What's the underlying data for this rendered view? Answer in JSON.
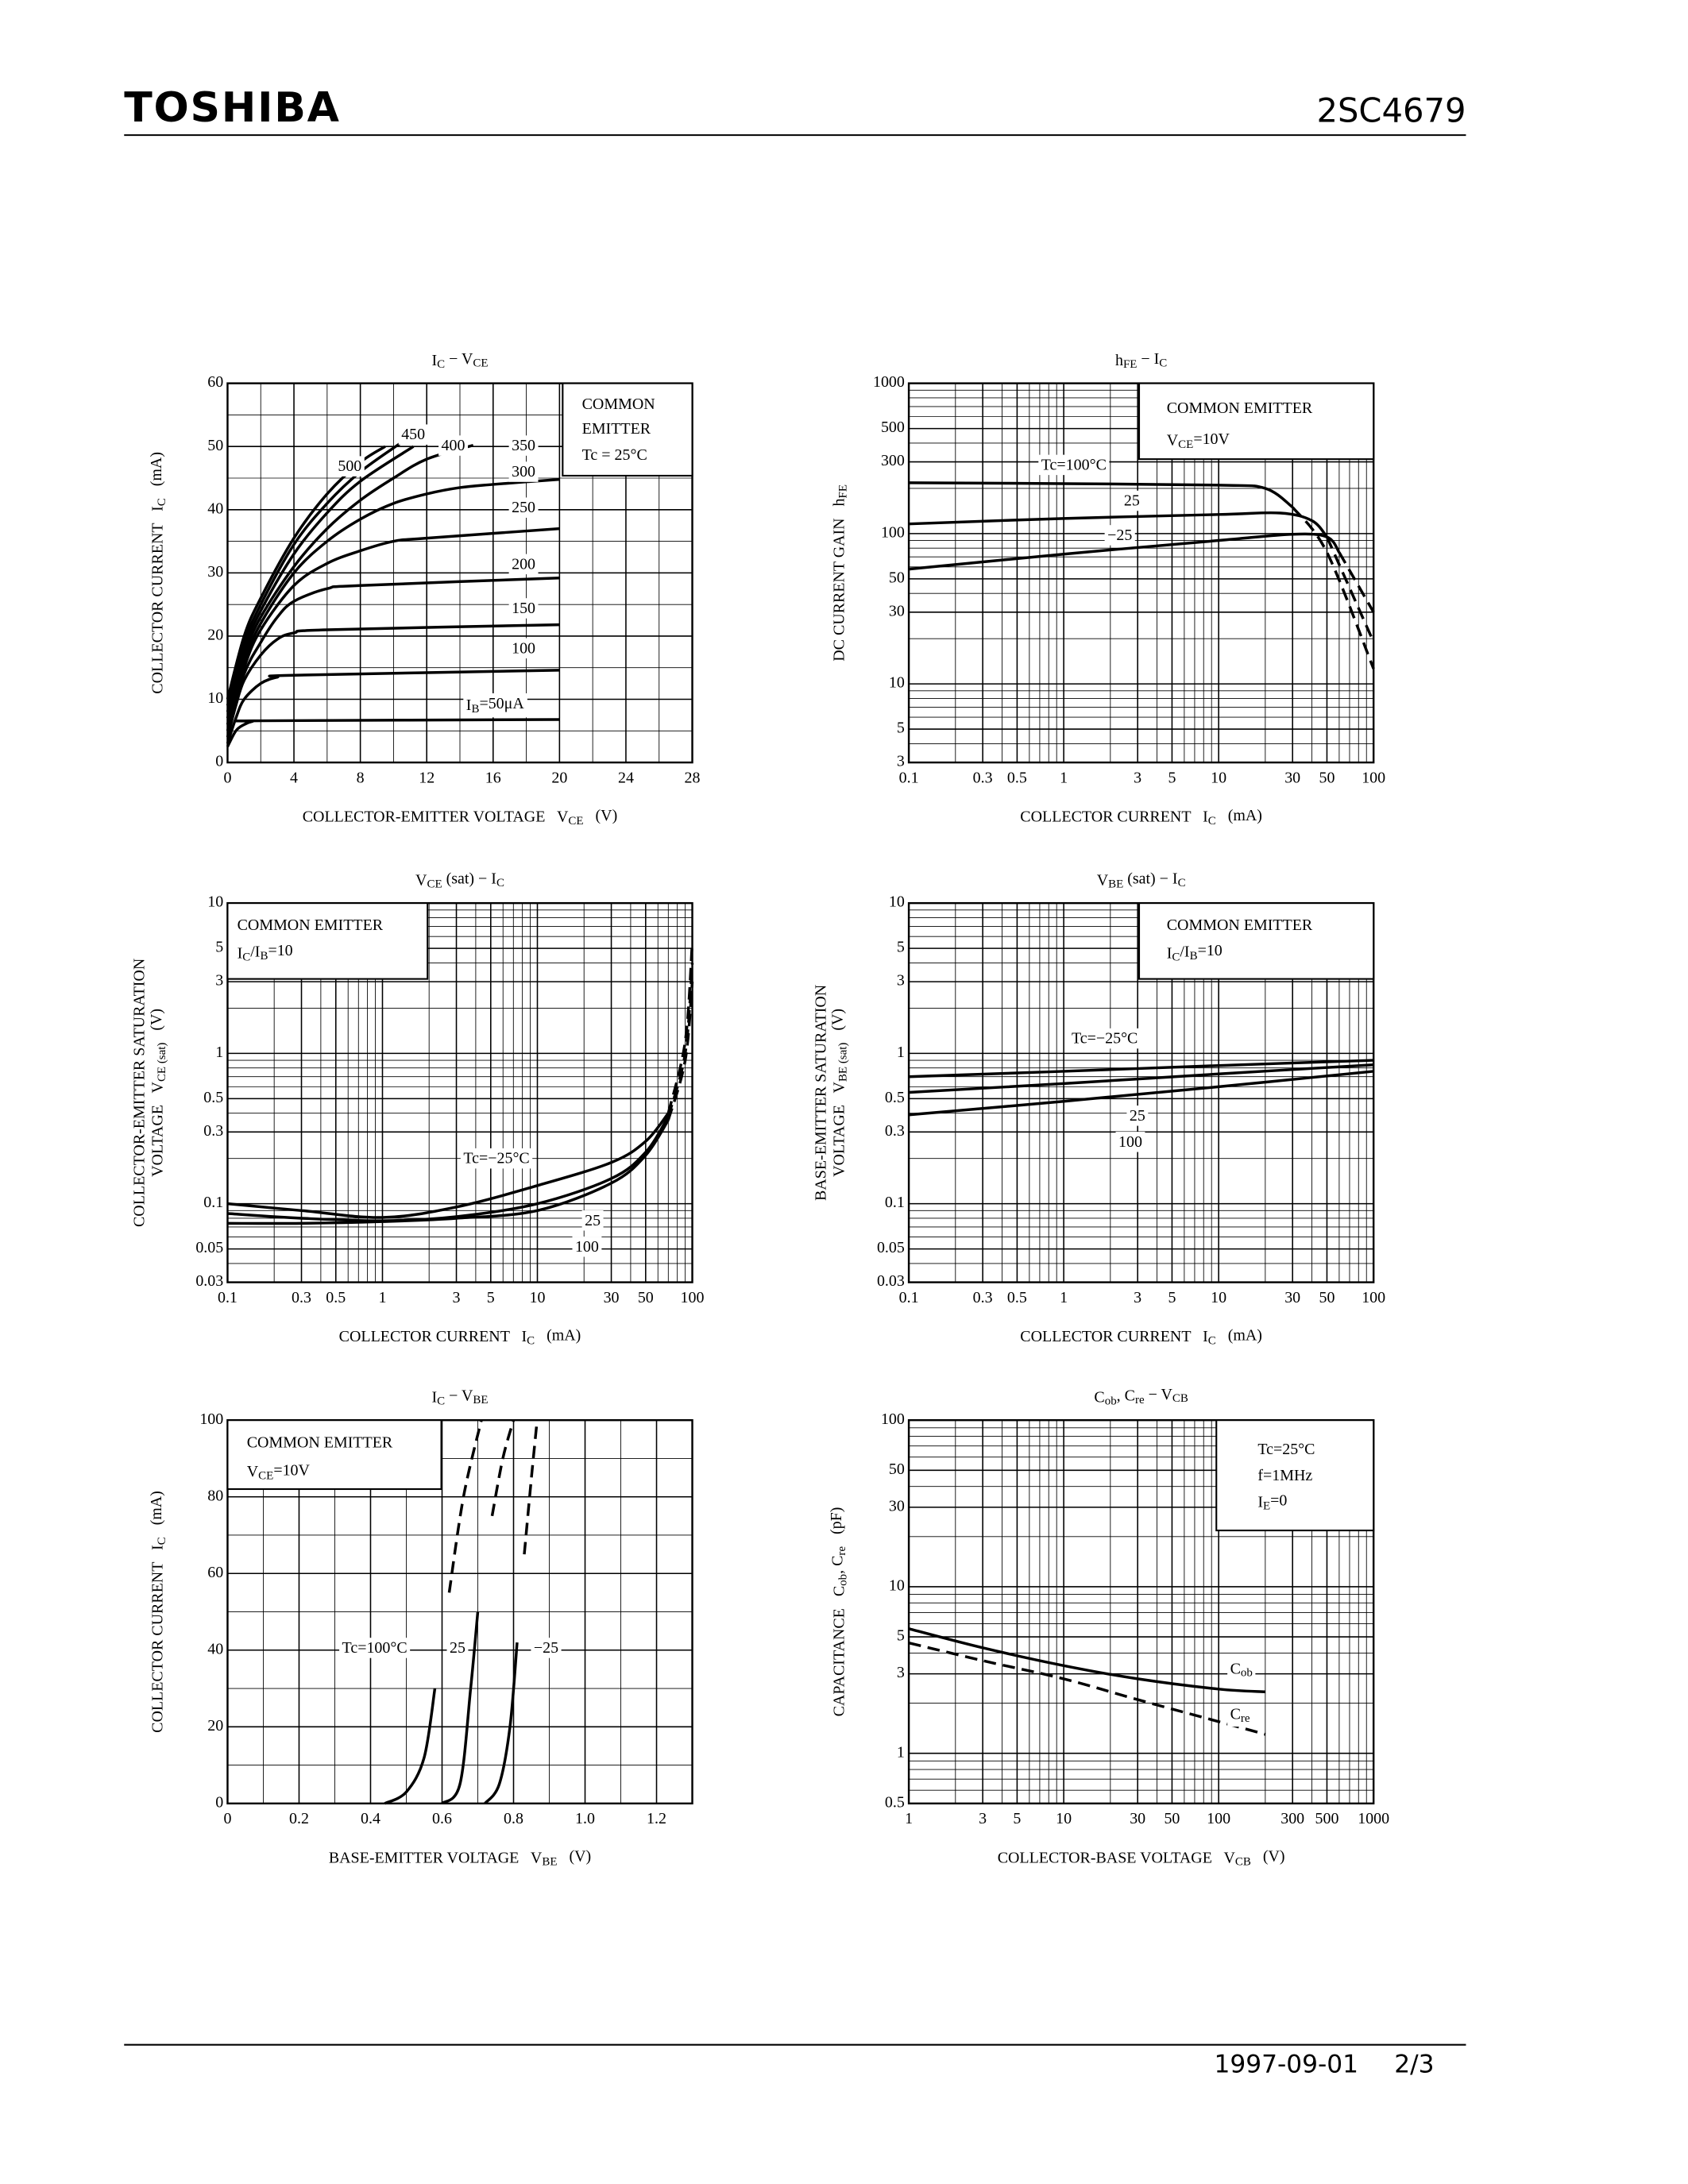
{
  "header": {
    "brand": "TOSHIBA",
    "part": "2SC4679"
  },
  "footer": {
    "date": "1997-09-01",
    "page": "2/3"
  },
  "chart_data": [
    {
      "type": "line",
      "title": [
        "I",
        {
          "sub": "C"
        },
        " − V",
        {
          "sub": "CE"
        }
      ],
      "xlabel": [
        "COLLECTOR-EMITTER VOLTAGE   V",
        {
          "sub": "CE"
        },
        "   (V)"
      ],
      "ylabel": [
        [
          "COLLECTOR CURRENT   I",
          {
            "sub": "C"
          },
          "   (mA)"
        ]
      ],
      "note": [
        "COMMON",
        "EMITTER",
        "Tc = 25°C"
      ],
      "xscale": "linear",
      "yscale": "linear",
      "xlim": [
        0,
        28
      ],
      "xticks": [
        0,
        4,
        8,
        12,
        16,
        20,
        24,
        28
      ],
      "ylim": [
        0,
        60
      ],
      "yticks": [
        0,
        10,
        20,
        30,
        40,
        50,
        60
      ],
      "grid": true,
      "minor_grid": {
        "x": 2,
        "y": 5
      },
      "series": [
        {
          "name": [
            "I",
            {
              "sub": "B"
            },
            "=50μA"
          ],
          "color": "#000",
          "x": [
            0,
            0.5,
            1,
            1.5,
            2,
            20
          ],
          "values": [
            2.5,
            5,
            6,
            6.5,
            6.6,
            6.8
          ]
        },
        {
          "name": "100",
          "color": "#000",
          "x": [
            0,
            0.5,
            1,
            2,
            3,
            4,
            20
          ],
          "values": [
            3,
            7,
            10,
            12.5,
            13.5,
            13.8,
            14.6
          ]
        },
        {
          "name": "150",
          "color": "#000",
          "x": [
            0,
            0.5,
            1,
            2,
            3,
            4,
            6,
            20
          ],
          "values": [
            4,
            9,
            13,
            17,
            19.5,
            20.5,
            21,
            21.8
          ]
        },
        {
          "name": "200",
          "color": "#000",
          "x": [
            0,
            1,
            2,
            3,
            4,
            6,
            8,
            20
          ],
          "values": [
            5,
            14,
            19,
            23,
            25.5,
            27.5,
            28,
            29.2
          ]
        },
        {
          "name": "250",
          "color": "#000",
          "x": [
            0,
            1,
            2,
            4,
            6,
            8,
            10,
            12,
            20
          ],
          "values": [
            6,
            15,
            21,
            28,
            31.5,
            33.5,
            35,
            35.5,
            37
          ]
        },
        {
          "name": "300",
          "color": "#000",
          "x": [
            0,
            1,
            2,
            4,
            6,
            8,
            10,
            12,
            14,
            16,
            20
          ],
          "values": [
            7,
            16,
            22,
            30,
            35,
            38.5,
            41,
            42.5,
            43.5,
            44,
            44.8
          ]
        },
        {
          "name": "350",
          "color": "#000",
          "x": [
            0,
            1,
            2,
            4,
            6,
            8,
            10,
            12,
            14.8
          ],
          "values": [
            8,
            17,
            23,
            31,
            37,
            41.5,
            45,
            48,
            50.2
          ]
        },
        {
          "name": "400",
          "color": "#000",
          "x": [
            0,
            1,
            2,
            4,
            6,
            8,
            11.2
          ],
          "values": [
            9,
            18,
            24,
            33,
            39.5,
            44.5,
            50
          ]
        },
        {
          "name": "450",
          "color": "#000",
          "x": [
            0,
            1,
            2,
            4,
            6,
            8,
            10.4
          ],
          "values": [
            10,
            19,
            25,
            34.5,
            41,
            46,
            50.5
          ]
        },
        {
          "name": "500",
          "color": "#000",
          "x": [
            0,
            1,
            2,
            4,
            6,
            8,
            9.5
          ],
          "values": [
            10,
            20,
            26,
            35.5,
            42.5,
            47.5,
            50
          ]
        }
      ]
    },
    {
      "type": "line",
      "title": [
        "h",
        {
          "sub": "FE"
        },
        " − I",
        {
          "sub": "C"
        }
      ],
      "xlabel": [
        "COLLECTOR CURRENT   I",
        {
          "sub": "C"
        },
        "   (mA)"
      ],
      "ylabel": [
        [
          "DC CURRENT GAIN   h",
          {
            "sub": "FE"
          }
        ]
      ],
      "note": [
        "COMMON EMITTER",
        [
          "V",
          {
            "sub": "CE"
          },
          "=10V"
        ]
      ],
      "xscale": "log",
      "yscale": "log",
      "xlim": [
        0.1,
        100
      ],
      "xticks": [
        0.1,
        0.3,
        0.5,
        1,
        3,
        5,
        10,
        30,
        50,
        100
      ],
      "ylim": [
        3,
        1000
      ],
      "yticks": [
        3,
        5,
        10,
        30,
        50,
        100,
        300,
        500,
        1000
      ],
      "grid": true,
      "minor_grid": {
        "x": "log",
        "y": "log"
      },
      "series": [
        {
          "name": "Tc=100°C",
          "color": "#000",
          "x": [
            0.1,
            1,
            10,
            20,
            30,
            50,
            100
          ],
          "values": [
            218,
            215,
            210,
            200,
            150,
            75,
            12.6
          ],
          "dash_from": 30
        },
        {
          "name": "25",
          "color": "#000",
          "x": [
            0.1,
            1,
            10,
            25,
            40,
            50,
            100
          ],
          "values": [
            116,
            126,
            134,
            137,
            122,
            95,
            19
          ],
          "dash_from": 50
        },
        {
          "name": "−25",
          "color": "#000",
          "x": [
            0.1,
            1,
            10,
            30,
            50,
            60,
            100
          ],
          "values": [
            58,
            73,
            90,
            99,
            95,
            75,
            30
          ],
          "dash_from": 60
        }
      ]
    },
    {
      "type": "line",
      "title": [
        "V",
        {
          "sub": "CE"
        },
        " (sat) − I",
        {
          "sub": "C"
        }
      ],
      "xlabel": [
        "COLLECTOR CURRENT   I",
        {
          "sub": "C"
        },
        "   (mA)"
      ],
      "ylabel": [
        "COLLECTOR-EMITTER SATURATION",
        [
          "VOLTAGE   V",
          {
            "sub": "CE (sat)"
          },
          "   (V)"
        ]
      ],
      "note": [
        "COMMON EMITTER",
        [
          "I",
          {
            "sub": "C"
          },
          "/I",
          {
            "sub": "B"
          },
          "=10"
        ]
      ],
      "xscale": "log",
      "yscale": "log",
      "xlim": [
        0.1,
        100
      ],
      "xticks": [
        0.1,
        0.3,
        0.5,
        1,
        3,
        5,
        10,
        30,
        50,
        100
      ],
      "ylim": [
        0.03,
        10
      ],
      "yticks": [
        0.03,
        0.05,
        0.1,
        0.3,
        0.5,
        1,
        3,
        5,
        10
      ],
      "grid": true,
      "minor_grid": {
        "x": "log",
        "y": "log"
      },
      "series": [
        {
          "name": "Tc=−25°C",
          "color": "#000",
          "x": [
            0.1,
            0.3,
            1,
            3,
            10,
            30,
            50,
            70,
            90,
            100
          ],
          "values": [
            0.1,
            0.09,
            0.081,
            0.095,
            0.132,
            0.188,
            0.26,
            0.4,
            1.2,
            5.5
          ],
          "dash_from": 70
        },
        {
          "name": "25",
          "color": "#000",
          "x": [
            0.1,
            0.3,
            1,
            3,
            10,
            30,
            50,
            70,
            90,
            100
          ],
          "values": [
            0.086,
            0.08,
            0.077,
            0.082,
            0.1,
            0.147,
            0.22,
            0.38,
            1,
            4
          ],
          "dash_from": 70
        },
        {
          "name": "100",
          "color": "#000",
          "x": [
            0.1,
            0.3,
            1,
            3,
            10,
            30,
            50,
            70,
            90,
            100
          ],
          "values": [
            0.074,
            0.074,
            0.076,
            0.08,
            0.09,
            0.137,
            0.21,
            0.36,
            0.9,
            3
          ],
          "dash_from": 70
        }
      ]
    },
    {
      "type": "line",
      "title": [
        "V",
        {
          "sub": "BE"
        },
        " (sat) − I",
        {
          "sub": "C"
        }
      ],
      "xlabel": [
        "COLLECTOR CURRENT   I",
        {
          "sub": "C"
        },
        "   (mA)"
      ],
      "ylabel": [
        "BASE-EMITTER SATURATION",
        [
          "VOLTAGE   V",
          {
            "sub": "BE (sat)"
          },
          "   (V)"
        ]
      ],
      "note": [
        "COMMON EMITTER",
        [
          "I",
          {
            "sub": "C"
          },
          "/I",
          {
            "sub": "B"
          },
          "=10"
        ]
      ],
      "xscale": "log",
      "yscale": "log",
      "xlim": [
        0.1,
        100
      ],
      "xticks": [
        0.1,
        0.3,
        0.5,
        1,
        3,
        5,
        10,
        30,
        50,
        100
      ],
      "ylim": [
        0.03,
        10
      ],
      "yticks": [
        0.03,
        0.05,
        0.1,
        0.3,
        0.5,
        1,
        3,
        5,
        10
      ],
      "grid": true,
      "minor_grid": {
        "x": "log",
        "y": "log"
      },
      "series": [
        {
          "name": "Tc=−25°C",
          "color": "#000",
          "x": [
            0.1,
            1,
            10,
            100
          ],
          "values": [
            0.7,
            0.76,
            0.83,
            0.9
          ]
        },
        {
          "name": "25",
          "color": "#000",
          "x": [
            0.1,
            1,
            10,
            100
          ],
          "values": [
            0.55,
            0.63,
            0.73,
            0.84
          ]
        },
        {
          "name": "100",
          "color": "#000",
          "x": [
            0.1,
            1,
            10,
            100
          ],
          "values": [
            0.39,
            0.48,
            0.6,
            0.76
          ]
        }
      ]
    },
    {
      "type": "line",
      "title": [
        "I",
        {
          "sub": "C"
        },
        " − V",
        {
          "sub": "BE"
        }
      ],
      "xlabel": [
        "BASE-EMITTER VOLTAGE   V",
        {
          "sub": "BE"
        },
        "   (V)"
      ],
      "ylabel": [
        [
          "COLLECTOR CURRENT   I",
          {
            "sub": "C"
          },
          "   (mA)"
        ]
      ],
      "note": [
        "COMMON EMITTER",
        [
          "V",
          {
            "sub": "CE"
          },
          "=10V"
        ]
      ],
      "xscale": "linear",
      "yscale": "linear",
      "xlim": [
        0,
        1.3
      ],
      "xticks": [
        0,
        0.2,
        0.4,
        0.6,
        0.8,
        {
          "value": 1,
          "label": "1.0"
        },
        1.2
      ],
      "ylim": [
        0,
        100
      ],
      "yticks": [
        0,
        20,
        40,
        60,
        80,
        100
      ],
      "grid": true,
      "minor_grid": {
        "x": 0.1,
        "y": 10
      },
      "series": [
        {
          "name": "Tc=100°C",
          "color": "#000",
          "x": [
            0.44,
            0.5,
            0.55,
            0.58,
            0.62,
            0.66,
            0.71
          ],
          "values": [
            0,
            3,
            12,
            30,
            55,
            80,
            100
          ],
          "dash_from": 0.6
        },
        {
          "name": "25",
          "color": "#000",
          "x": [
            0.6,
            0.65,
            0.68,
            0.7,
            0.74,
            0.77,
            0.8
          ],
          "values": [
            0,
            5,
            30,
            50,
            75,
            90,
            100
          ],
          "dash_from": 0.73
        },
        {
          "name": "−25",
          "color": "#000",
          "x": [
            0.72,
            0.76,
            0.79,
            0.81,
            0.83,
            0.85,
            0.866
          ],
          "values": [
            0,
            5,
            20,
            42,
            65,
            85,
            100
          ],
          "dash_from": 0.82
        }
      ]
    },
    {
      "type": "line",
      "title": [
        "C",
        {
          "sub": "ob"
        },
        ", C",
        {
          "sub": "re"
        },
        " − V",
        {
          "sub": "CB"
        }
      ],
      "xlabel": [
        "COLLECTOR-BASE VOLTAGE   V",
        {
          "sub": "CB"
        },
        "   (V)"
      ],
      "ylabel": [
        [
          "CAPACITANCE   C",
          {
            "sub": "ob"
          },
          ", C",
          {
            "sub": "re"
          },
          "   (pF)"
        ]
      ],
      "note": [
        "Tc=25°C",
        "f=1MHz",
        [
          "I",
          {
            "sub": "E"
          },
          "=0"
        ]
      ],
      "xscale": "log",
      "yscale": "log",
      "xlim": [
        1,
        1000
      ],
      "xticks": [
        1,
        3,
        5,
        10,
        30,
        50,
        100,
        300,
        500,
        1000
      ],
      "ylim": [
        0.5,
        100
      ],
      "yticks": [
        0.5,
        1,
        3,
        5,
        10,
        30,
        50,
        100
      ],
      "grid": true,
      "minor_grid": {
        "x": "log",
        "y": "log"
      },
      "series": [
        {
          "name": [
            "C",
            {
              "sub": "ob"
            }
          ],
          "color": "#000",
          "x": [
            1,
            3,
            10,
            30,
            100,
            200
          ],
          "values": [
            5.6,
            4.3,
            3.36,
            2.8,
            2.43,
            2.34
          ]
        },
        {
          "name": [
            "C",
            {
              "sub": "re"
            }
          ],
          "color": "#000",
          "x": [
            1,
            3,
            10,
            30,
            100,
            200
          ],
          "values": [
            4.6,
            3.6,
            2.8,
            2.1,
            1.55,
            1.3
          ],
          "dash_from": 1
        }
      ]
    }
  ]
}
